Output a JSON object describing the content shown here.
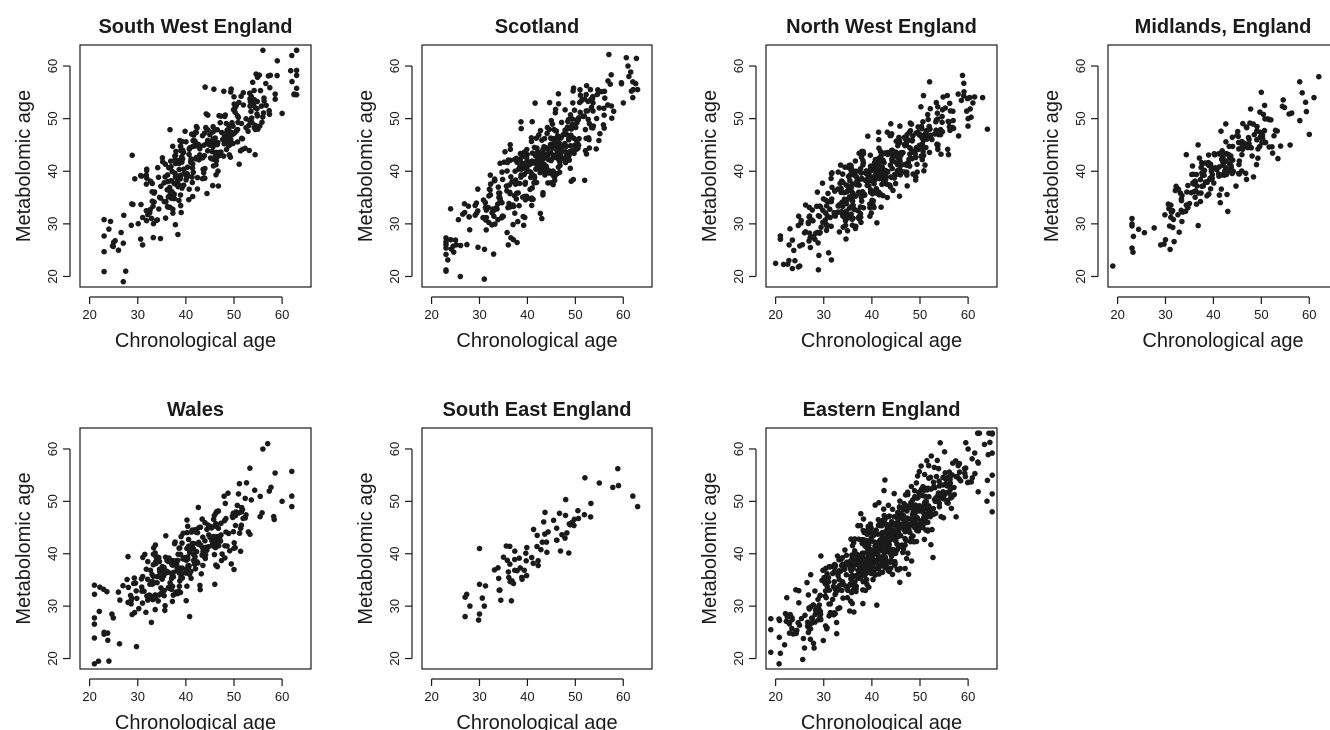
{
  "chart_data": [
    {
      "type": "scatter",
      "title": "South West England",
      "xlabel": "Chronological age",
      "ylabel": "Metabolomic age",
      "xticks": [
        20,
        30,
        40,
        50,
        60
      ],
      "yticks": [
        20,
        30,
        40,
        50,
        60
      ],
      "xlim": [
        18,
        66
      ],
      "ylim": [
        18,
        64
      ],
      "grid": false,
      "n_points": 370,
      "seed": 11,
      "trend": {
        "slope": 0.78,
        "intercept": 9.5,
        "sd": 3.8
      },
      "x_dist": {
        "mean": 44,
        "sd": 8.5,
        "min": 23,
        "max": 63
      },
      "points": [
        [
          27,
          19
        ],
        [
          27.5,
          21
        ],
        [
          26,
          25
        ],
        [
          56,
          63
        ],
        [
          62,
          62
        ],
        [
          59,
          61
        ],
        [
          60,
          51
        ],
        [
          24,
          29
        ],
        [
          31,
          26
        ],
        [
          44,
          56
        ]
      ]
    },
    {
      "type": "scatter",
      "title": "Scotland",
      "xlabel": "Chronological age",
      "ylabel": "Metabolomic age",
      "xticks": [
        20,
        30,
        40,
        50,
        60
      ],
      "yticks": [
        20,
        30,
        40,
        50,
        60
      ],
      "xlim": [
        18,
        66
      ],
      "ylim": [
        18,
        64
      ],
      "grid": false,
      "n_points": 420,
      "seed": 23,
      "trend": {
        "slope": 0.78,
        "intercept": 8.5,
        "sd": 3.9
      },
      "x_dist": {
        "mean": 42,
        "sd": 8.5,
        "min": 23,
        "max": 63
      },
      "points": [
        [
          31,
          19.5
        ],
        [
          26,
          20
        ],
        [
          23,
          21
        ],
        [
          61,
          60
        ],
        [
          62,
          57
        ],
        [
          62,
          54
        ],
        [
          60,
          53
        ],
        [
          24,
          27
        ],
        [
          36,
          26
        ],
        [
          43,
          31
        ]
      ]
    },
    {
      "type": "scatter",
      "title": "North West England",
      "xlabel": "Chronological age",
      "ylabel": "Metabolomic age",
      "xticks": [
        20,
        30,
        40,
        50,
        60
      ],
      "yticks": [
        20,
        30,
        40,
        50,
        60
      ],
      "xlim": [
        18,
        66
      ],
      "ylim": [
        18,
        64
      ],
      "grid": false,
      "n_points": 480,
      "seed": 37,
      "trend": {
        "slope": 0.7,
        "intercept": 11.0,
        "sd": 3.4
      },
      "x_dist": {
        "mean": 41,
        "sd": 8.5,
        "min": 21,
        "max": 62
      },
      "points": [
        [
          20,
          22.5
        ],
        [
          24,
          23
        ],
        [
          25,
          22
        ],
        [
          64,
          48
        ],
        [
          63,
          54
        ],
        [
          61,
          53
        ],
        [
          31,
          24.5
        ],
        [
          29,
          24
        ],
        [
          52,
          57
        ],
        [
          60,
          50
        ]
      ]
    },
    {
      "type": "scatter",
      "title": "Midlands, England",
      "xlabel": "Chronological age",
      "ylabel": "Metabolomic age",
      "xticks": [
        20,
        30,
        40,
        50,
        60
      ],
      "yticks": [
        20,
        30,
        40,
        50,
        60
      ],
      "xlim": [
        18,
        66
      ],
      "ylim": [
        18,
        64
      ],
      "grid": false,
      "n_points": 230,
      "seed": 53,
      "trend": {
        "slope": 0.72,
        "intercept": 10.5,
        "sd": 3.2
      },
      "x_dist": {
        "mean": 42,
        "sd": 8.5,
        "min": 23,
        "max": 62
      },
      "points": [
        [
          19,
          22
        ],
        [
          23,
          30
        ],
        [
          29,
          26
        ],
        [
          30,
          27
        ],
        [
          58,
          57
        ],
        [
          66,
          55
        ],
        [
          61,
          54
        ],
        [
          50,
          55
        ],
        [
          60,
          47
        ],
        [
          56,
          45
        ]
      ]
    },
    {
      "type": "scatter",
      "title": "Wales",
      "xlabel": "Chronological age",
      "ylabel": "Metabolomic age",
      "xticks": [
        20,
        30,
        40,
        50,
        60
      ],
      "yticks": [
        20,
        30,
        40,
        50,
        60
      ],
      "xlim": [
        18,
        66
      ],
      "ylim": [
        18,
        64
      ],
      "grid": false,
      "n_points": 330,
      "seed": 71,
      "trend": {
        "slope": 0.66,
        "intercept": 12.5,
        "sd": 3.6
      },
      "x_dist": {
        "mean": 40,
        "sd": 8.5,
        "min": 21,
        "max": 62
      },
      "points": [
        [
          24,
          19.5
        ],
        [
          21,
          34
        ],
        [
          22,
          29
        ],
        [
          23,
          25
        ],
        [
          57,
          61
        ],
        [
          56,
          60
        ],
        [
          60,
          50
        ],
        [
          62,
          49
        ],
        [
          62,
          51
        ],
        [
          50,
          37
        ]
      ]
    },
    {
      "type": "scatter",
      "title": "South East England",
      "xlabel": "Chronological age",
      "ylabel": "Metabolomic age",
      "xticks": [
        20,
        30,
        40,
        50,
        60
      ],
      "yticks": [
        20,
        30,
        40,
        50,
        60
      ],
      "xlim": [
        18,
        66
      ],
      "ylim": [
        18,
        64
      ],
      "grid": false,
      "n_points": 85,
      "seed": 89,
      "trend": {
        "slope": 0.7,
        "intercept": 11.5,
        "sd": 3.0
      },
      "x_dist": {
        "mean": 43,
        "sd": 7.5,
        "min": 27,
        "max": 60
      },
      "points": [
        [
          27,
          28
        ],
        [
          28,
          30
        ],
        [
          30,
          28.5
        ],
        [
          31,
          30
        ],
        [
          30,
          41
        ],
        [
          63,
          49
        ],
        [
          62,
          51
        ],
        [
          59,
          53
        ],
        [
          55,
          53.5
        ],
        [
          52,
          54.5
        ]
      ]
    },
    {
      "type": "scatter",
      "title": "Eastern England",
      "xlabel": "Chronological age",
      "ylabel": "Metabolomic age",
      "xticks": [
        20,
        30,
        40,
        50,
        60
      ],
      "yticks": [
        20,
        30,
        40,
        50,
        60
      ],
      "xlim": [
        18,
        66
      ],
      "ylim": [
        18,
        64
      ],
      "grid": false,
      "n_points": 700,
      "seed": 97,
      "trend": {
        "slope": 0.8,
        "intercept": 8.0,
        "sd": 3.6
      },
      "x_dist": {
        "mean": 42,
        "sd": 10,
        "min": 19,
        "max": 65
      },
      "points": [
        [
          19,
          25.5
        ],
        [
          21,
          21
        ],
        [
          26,
          22
        ],
        [
          28,
          22
        ],
        [
          65,
          55
        ],
        [
          64,
          54
        ],
        [
          60,
          60
        ],
        [
          65,
          48
        ],
        [
          58,
          57
        ],
        [
          62,
          57.5
        ]
      ]
    }
  ]
}
